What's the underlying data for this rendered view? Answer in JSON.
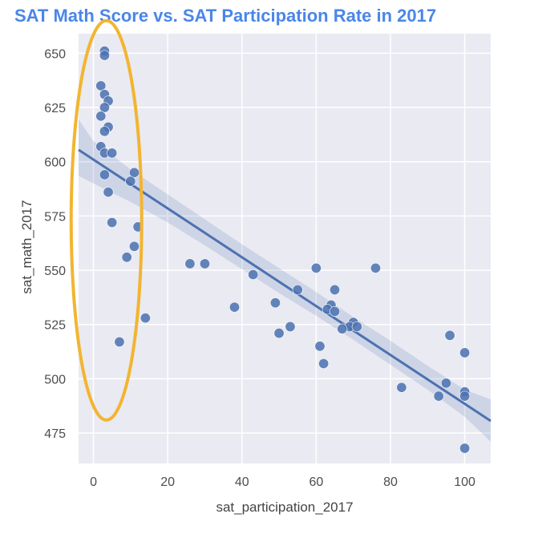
{
  "chart_data": {
    "type": "scatter",
    "title": "SAT Math Score vs. SAT Participation Rate in 2017",
    "xlabel": "sat_participation_2017",
    "ylabel": "sat_math_2017",
    "xlim": [
      -4,
      107
    ],
    "ylim": [
      461,
      659
    ],
    "xticks": [
      0,
      20,
      40,
      60,
      80,
      100
    ],
    "yticks": [
      475,
      500,
      525,
      550,
      575,
      600,
      625,
      650
    ],
    "grid": true,
    "legend": "none",
    "colors": {
      "background": "#eaeaf2",
      "grid": "#ffffff",
      "points": "#4c72b0",
      "regression_line": "#4c72b0",
      "confidence_band": "#4c72b0",
      "highlight_ellipse": "#f2b531",
      "title": "#4a86e8"
    },
    "points": [
      [
        3,
        651
      ],
      [
        3,
        649
      ],
      [
        2,
        635
      ],
      [
        3,
        631
      ],
      [
        4,
        628
      ],
      [
        3,
        625
      ],
      [
        2,
        621
      ],
      [
        4,
        616
      ],
      [
        3,
        614
      ],
      [
        2,
        607
      ],
      [
        3,
        604
      ],
      [
        5,
        604
      ],
      [
        3,
        594
      ],
      [
        11,
        595
      ],
      [
        10,
        591
      ],
      [
        4,
        586
      ],
      [
        5,
        572
      ],
      [
        12,
        570
      ],
      [
        11,
        561
      ],
      [
        9,
        556
      ],
      [
        26,
        553
      ],
      [
        30,
        553
      ],
      [
        60,
        551
      ],
      [
        76,
        551
      ],
      [
        43,
        548
      ],
      [
        55,
        541
      ],
      [
        65,
        541
      ],
      [
        38,
        533
      ],
      [
        49,
        535
      ],
      [
        64,
        534
      ],
      [
        63,
        532
      ],
      [
        65,
        531
      ],
      [
        53,
        524
      ],
      [
        50,
        521
      ],
      [
        70,
        526
      ],
      [
        69,
        524
      ],
      [
        71,
        524
      ],
      [
        67,
        523
      ],
      [
        14,
        528
      ],
      [
        7,
        517
      ],
      [
        61,
        515
      ],
      [
        62,
        507
      ],
      [
        96,
        520
      ],
      [
        100,
        512
      ],
      [
        95,
        498
      ],
      [
        83,
        496
      ],
      [
        93,
        492
      ],
      [
        100,
        494
      ],
      [
        100,
        492
      ],
      [
        100,
        468
      ]
    ],
    "regression": {
      "x": [
        -4,
        107
      ],
      "y": [
        605.5,
        480.6
      ]
    },
    "confidence_band": {
      "x": [
        -4,
        0,
        10,
        20,
        30,
        40,
        50,
        60,
        70,
        80,
        90,
        100,
        107
      ],
      "upper": [
        619.5,
        609.5,
        596.5,
        585.0,
        573.5,
        562.0,
        551.0,
        540.0,
        528.5,
        517.5,
        506.0,
        495.0,
        490.5
      ],
      "lower": [
        593.5,
        590.0,
        581.5,
        572.0,
        561.5,
        550.5,
        539.5,
        529.0,
        518.0,
        506.5,
        495.0,
        482.5,
        471.0
      ]
    },
    "highlight_ellipse": {
      "center": [
        3.5,
        573
      ],
      "radius_x": 9.5,
      "radius_y": 92
    }
  }
}
